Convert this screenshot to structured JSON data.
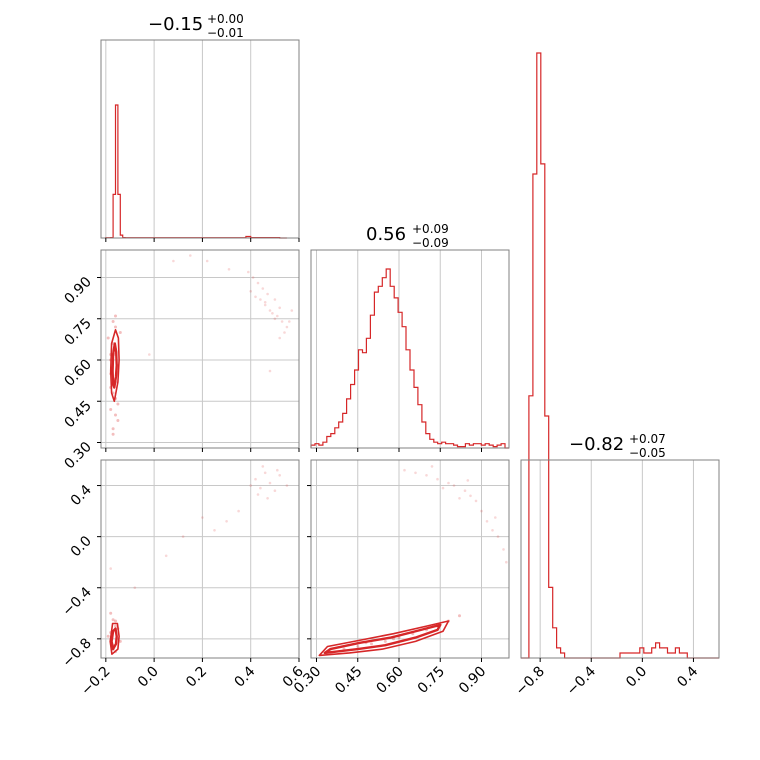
{
  "colors": {
    "series": "#d62728",
    "grid": "#c8c8c8",
    "frame": "#808080"
  },
  "chart_data": {
    "type": "corner",
    "parameters": [
      {
        "title_value": "−0.15",
        "title_plus": "+0.00",
        "title_minus": "−0.01",
        "ticks": [
          "−0.2",
          "0.0",
          "0.2",
          "0.4",
          "0.6"
        ],
        "tick_values": [
          -0.2,
          0.0,
          0.2,
          0.4,
          0.6
        ],
        "range": [
          -0.22,
          0.6
        ],
        "histogram": {
          "bin_edges": [
            -0.2,
            -0.18,
            -0.17,
            -0.16,
            -0.15,
            -0.14,
            -0.13,
            -0.12,
            0.38,
            0.4,
            0.52,
            0.55
          ],
          "counts": [
            0.4,
            0.6,
            60,
            183,
            60,
            4,
            0.6,
            0.4,
            2,
            0.5,
            0
          ]
        }
      },
      {
        "title_value": "0.56",
        "title_plus": "+0.09",
        "title_minus": "−0.09",
        "ticks": [
          "0.30",
          "0.45",
          "0.60",
          "0.75",
          "0.90"
        ],
        "tick_values": [
          0.3,
          0.45,
          0.6,
          0.75,
          0.9
        ],
        "range": [
          0.28,
          1.0
        ],
        "histogram": {
          "bin_start": 0.28,
          "bin_width": 0.0144,
          "counts": [
            2,
            3,
            2,
            4,
            8,
            10,
            14,
            18,
            24,
            34,
            44,
            54,
            68,
            66,
            76,
            92,
            108,
            112,
            118,
            124,
            112,
            104,
            94,
            84,
            68,
            54,
            42,
            30,
            18,
            10,
            6,
            4,
            3,
            4,
            3,
            3,
            2,
            1,
            1,
            3,
            2,
            3,
            3,
            2,
            3,
            2,
            1,
            2,
            3,
            0
          ]
        }
      },
      {
        "title_value": "−0.82",
        "title_plus": "+0.07",
        "title_minus": "−0.05",
        "ticks": [
          "−0.8",
          "−0.4",
          "0.0",
          "0.4"
        ],
        "tick_values": [
          -0.8,
          -0.4,
          0.0,
          0.4
        ],
        "range": [
          -0.95,
          0.6
        ],
        "histogram": {
          "bin_start": -0.95,
          "bin_width": 0.031,
          "counts": [
            0,
            0,
            52,
            96,
            120,
            98,
            48,
            14,
            6,
            2,
            1,
            0,
            0,
            0,
            0,
            0,
            0,
            0,
            0,
            0,
            0,
            0,
            0,
            0,
            0,
            1,
            1,
            1,
            1,
            1,
            2,
            1,
            1,
            2,
            3,
            2,
            2,
            1,
            1,
            2,
            1,
            1,
            0,
            0,
            0,
            0,
            0,
            0,
            0,
            0
          ]
        }
      }
    ],
    "panels_2d": [
      {
        "x_param": 0,
        "y_param": 1,
        "core_contour": [
          [
            -0.165,
            0.5
          ],
          [
            -0.158,
            0.54
          ],
          [
            -0.155,
            0.58
          ],
          [
            -0.157,
            0.63
          ],
          [
            -0.163,
            0.66
          ],
          [
            -0.17,
            0.62
          ],
          [
            -0.172,
            0.56
          ],
          [
            -0.17,
            0.51
          ]
        ],
        "outer_contour": [
          [
            -0.165,
            0.45
          ],
          [
            -0.15,
            0.52
          ],
          [
            -0.145,
            0.6
          ],
          [
            -0.148,
            0.68
          ],
          [
            -0.16,
            0.71
          ],
          [
            -0.176,
            0.66
          ],
          [
            -0.18,
            0.56
          ],
          [
            -0.176,
            0.48
          ]
        ],
        "scatter_core": {
          "x": [
            -0.17,
            -0.16,
            -0.18,
            -0.15,
            -0.17,
            -0.16,
            -0.18,
            -0.15,
            -0.16,
            -0.17,
            -0.19,
            -0.14,
            -0.16,
            -0.17,
            -0.18,
            -0.15,
            -0.16,
            -0.17,
            -0.18,
            -0.16,
            -0.15,
            -0.17,
            -0.16,
            -0.18
          ],
          "y": [
            0.35,
            0.4,
            0.42,
            0.44,
            0.48,
            0.52,
            0.55,
            0.58,
            0.62,
            0.66,
            0.68,
            0.7,
            0.72,
            0.74,
            0.62,
            0.38,
            0.46,
            0.53,
            0.6,
            0.76,
            0.57,
            0.33,
            0.64,
            0.5
          ]
        },
        "scatter_outlier": {
          "x": [
            0.4,
            0.42,
            0.44,
            0.45,
            0.46,
            0.48,
            0.5,
            0.51,
            0.52,
            0.53,
            0.55,
            0.57,
            0.43,
            0.47,
            0.49,
            0.54,
            0.56,
            0.41,
            0.39,
            0.46,
            0.5,
            0.52,
            0.31,
            0.22,
            0.15,
            -0.02,
            0.08,
            0.48
          ],
          "y": [
            0.85,
            0.83,
            0.82,
            0.86,
            0.8,
            0.78,
            0.82,
            0.76,
            0.79,
            0.74,
            0.72,
            0.78,
            0.88,
            0.84,
            0.77,
            0.7,
            0.74,
            0.9,
            0.92,
            0.81,
            0.75,
            0.68,
            0.93,
            0.96,
            0.98,
            0.62,
            0.96,
            0.56
          ]
        }
      },
      {
        "x_param": 0,
        "y_param": 2,
        "core_contour": [
          [
            -0.17,
            -0.88
          ],
          [
            -0.158,
            -0.84
          ],
          [
            -0.155,
            -0.78
          ],
          [
            -0.16,
            -0.72
          ],
          [
            -0.17,
            -0.74
          ],
          [
            -0.176,
            -0.82
          ]
        ],
        "outer_contour": [
          [
            -0.175,
            -0.92
          ],
          [
            -0.15,
            -0.88
          ],
          [
            -0.145,
            -0.78
          ],
          [
            -0.152,
            -0.68
          ],
          [
            -0.172,
            -0.68
          ],
          [
            -0.182,
            -0.82
          ]
        ],
        "scatter_core": {
          "x": [
            -0.17,
            -0.16,
            -0.18,
            -0.15,
            -0.17,
            -0.16,
            -0.18,
            -0.15,
            -0.14,
            -0.17,
            -0.19,
            -0.16
          ],
          "y": [
            -0.65,
            -0.7,
            -0.75,
            -0.8,
            -0.85,
            -0.9,
            -0.6,
            -0.72,
            -0.82,
            -0.88,
            -0.78,
            -0.66
          ]
        },
        "scatter_outlier": {
          "x": [
            0.4,
            0.42,
            0.44,
            0.46,
            0.48,
            0.5,
            0.52,
            0.55,
            0.45,
            0.47,
            0.43,
            0.51,
            0.3,
            0.25,
            0.2,
            0.12,
            0.05,
            -0.08,
            -0.18,
            0.35
          ],
          "y": [
            0.4,
            0.45,
            0.38,
            0.5,
            0.42,
            0.36,
            0.48,
            0.4,
            0.55,
            0.3,
            0.33,
            0.52,
            0.12,
            0.05,
            0.15,
            0.0,
            -0.15,
            -0.4,
            -0.25,
            0.2
          ]
        }
      },
      {
        "x_param": 1,
        "y_param": 2,
        "core_contour": [
          [
            0.33,
            -0.91
          ],
          [
            0.45,
            -0.88
          ],
          [
            0.55,
            -0.85
          ],
          [
            0.66,
            -0.79
          ],
          [
            0.74,
            -0.73
          ],
          [
            0.75,
            -0.69
          ],
          [
            0.68,
            -0.73
          ],
          [
            0.57,
            -0.79
          ],
          [
            0.46,
            -0.83
          ],
          [
            0.35,
            -0.88
          ]
        ],
        "outer_contour": [
          [
            0.31,
            -0.93
          ],
          [
            0.42,
            -0.91
          ],
          [
            0.54,
            -0.88
          ],
          [
            0.66,
            -0.82
          ],
          [
            0.76,
            -0.74
          ],
          [
            0.78,
            -0.66
          ],
          [
            0.7,
            -0.7
          ],
          [
            0.58,
            -0.76
          ],
          [
            0.46,
            -0.81
          ],
          [
            0.34,
            -0.86
          ]
        ],
        "scatter_core": {
          "x": [
            0.35,
            0.4,
            0.45,
            0.5,
            0.55,
            0.6,
            0.65,
            0.7,
            0.74,
            0.78,
            0.82,
            0.48,
            0.58
          ],
          "y": [
            -0.9,
            -0.88,
            -0.86,
            -0.84,
            -0.82,
            -0.79,
            -0.76,
            -0.73,
            -0.7,
            -0.66,
            -0.62,
            -0.83,
            -0.8
          ]
        },
        "scatter_outlier": {
          "x": [
            0.62,
            0.66,
            0.7,
            0.74,
            0.78,
            0.8,
            0.84,
            0.86,
            0.88,
            0.9,
            0.92,
            0.94,
            0.96,
            0.98,
            0.76,
            0.82,
            0.85,
            0.72,
            0.95,
            0.99
          ],
          "y": [
            0.52,
            0.5,
            0.48,
            0.45,
            0.42,
            0.4,
            0.36,
            0.32,
            0.28,
            0.2,
            0.12,
            0.05,
            0.0,
            -0.1,
            0.38,
            0.3,
            0.44,
            0.55,
            0.15,
            -0.2
          ]
        }
      }
    ]
  }
}
